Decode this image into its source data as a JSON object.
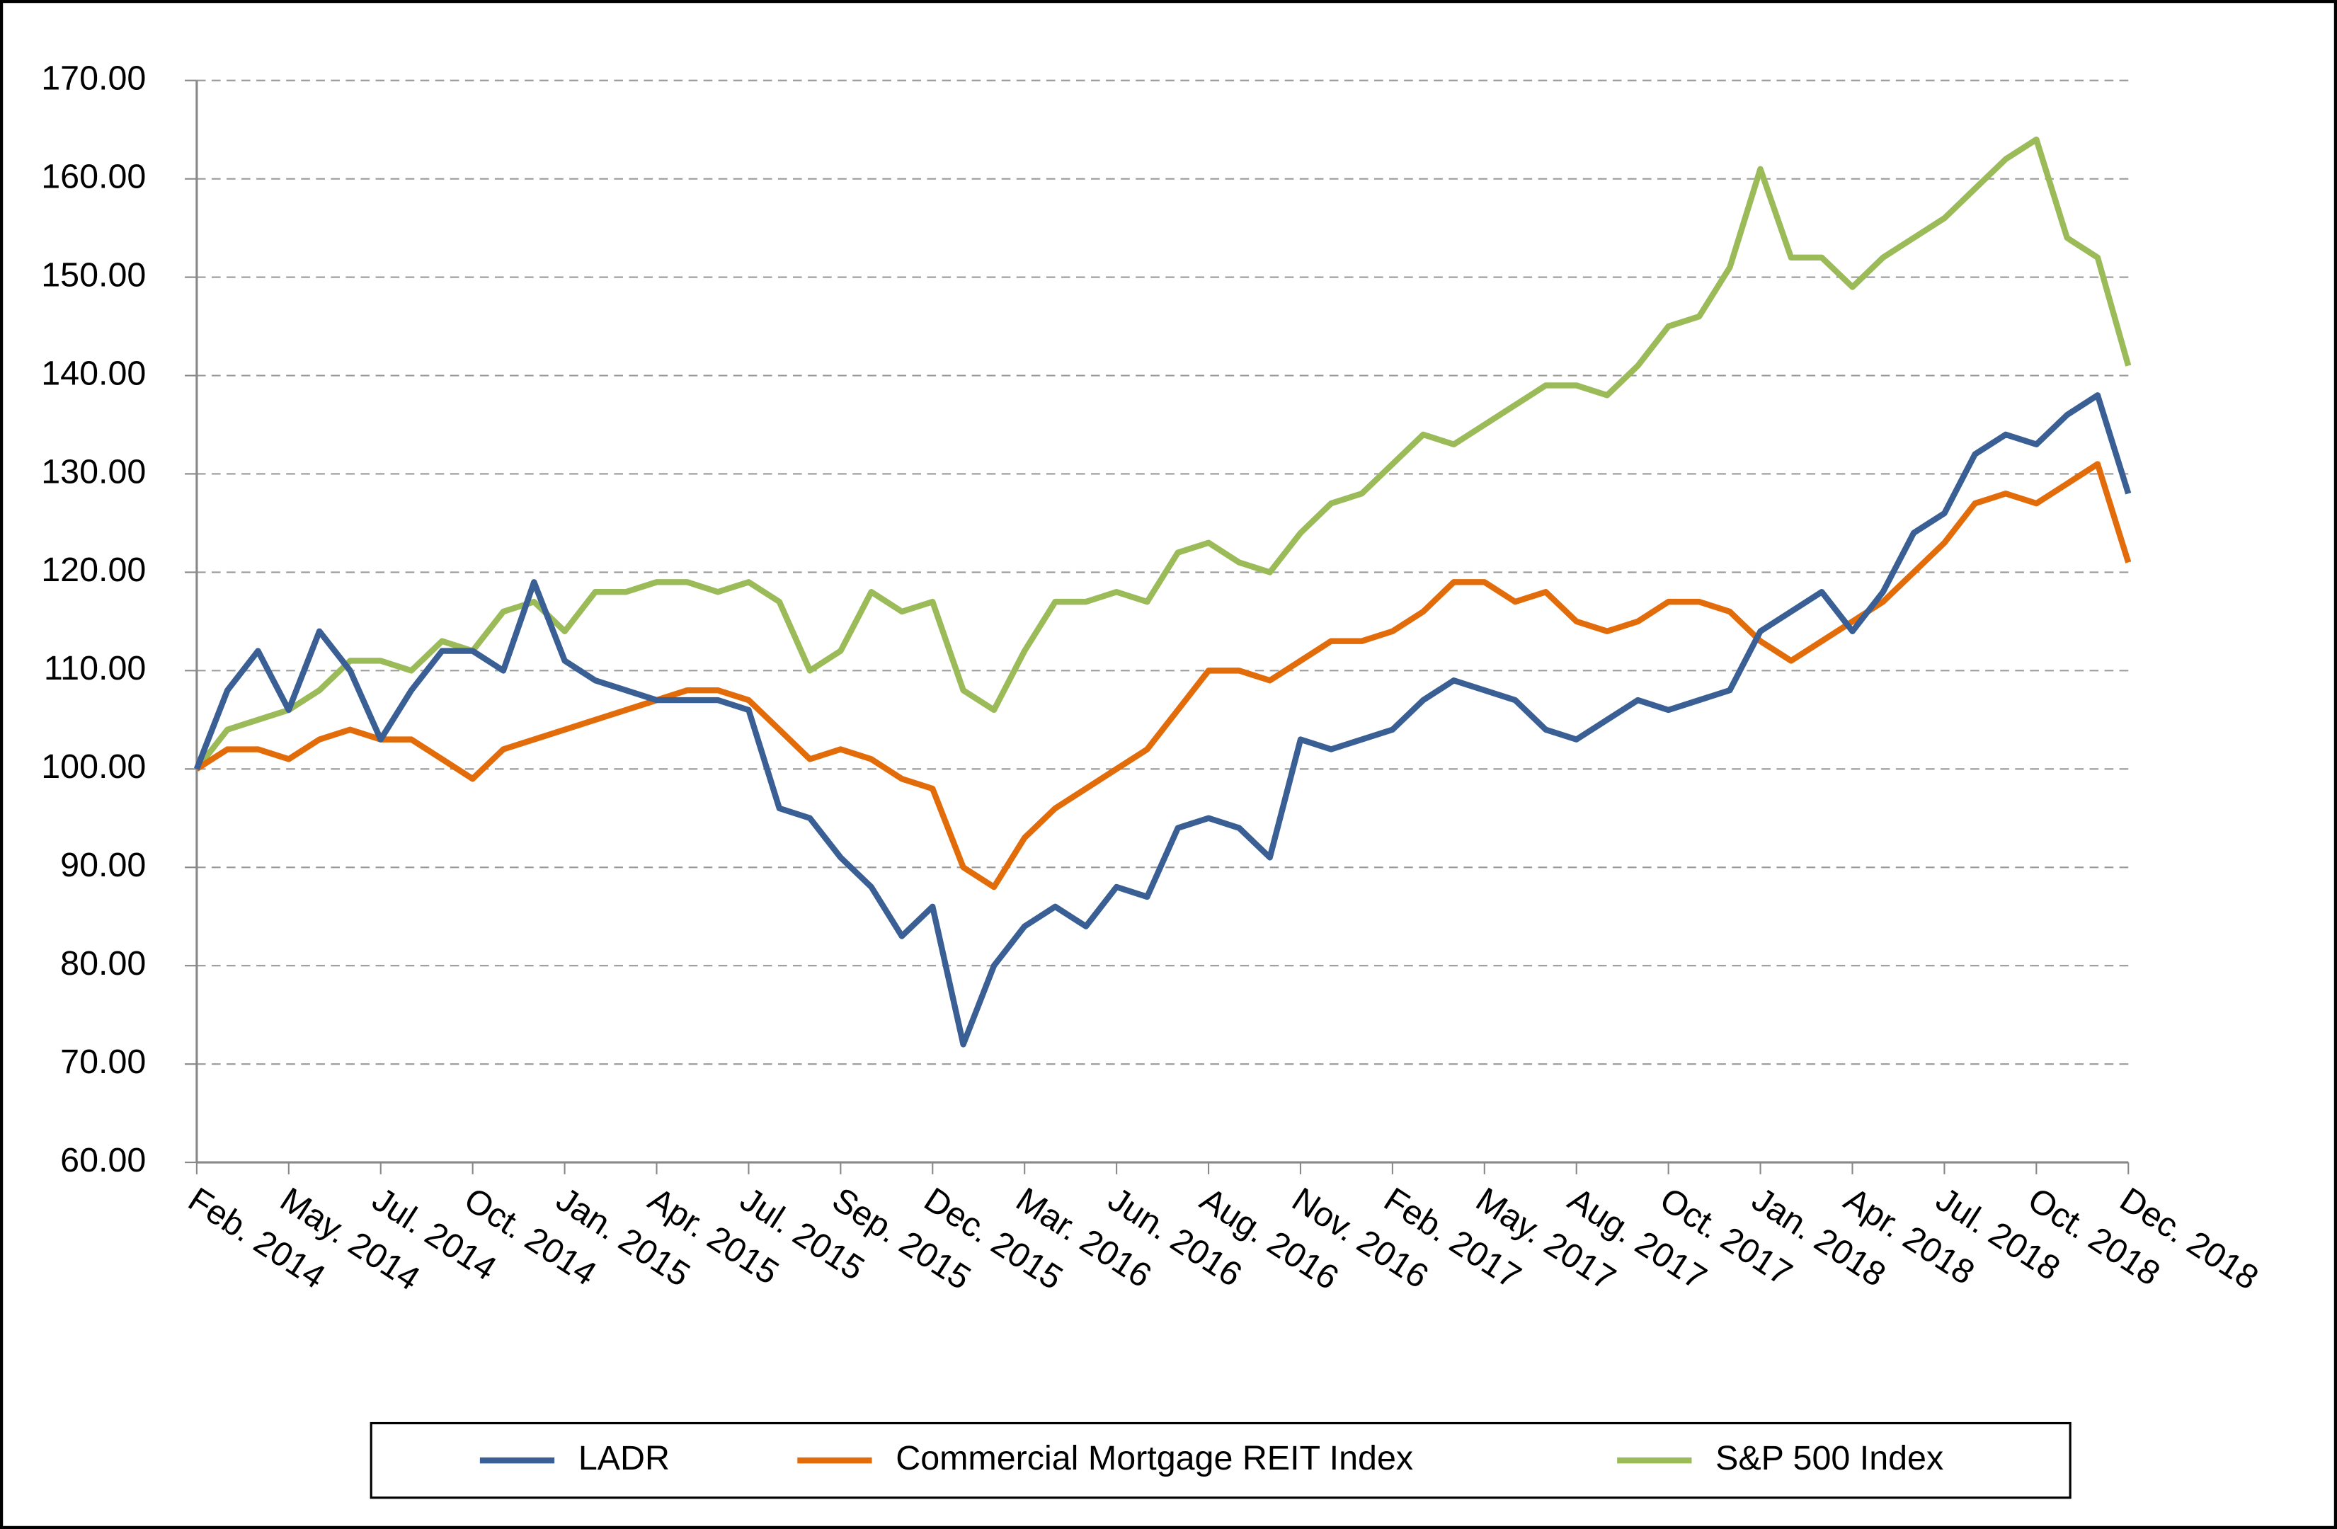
{
  "chart_data": {
    "type": "line",
    "categories": [
      "Feb. 2014",
      null,
      null,
      "May. 2014",
      null,
      null,
      "Jul. 2014",
      null,
      null,
      "Oct. 2014",
      null,
      null,
      "Jan. 2015",
      null,
      null,
      "Apr. 2015",
      null,
      null,
      "Jul. 2015",
      null,
      null,
      "Sep. 2015",
      null,
      null,
      "Dec. 2015",
      null,
      null,
      "Mar. 2016",
      null,
      null,
      "Jun. 2016",
      null,
      null,
      "Aug. 2016",
      null,
      null,
      "Nov. 2016",
      null,
      null,
      "Feb. 2017",
      null,
      null,
      "May. 2017",
      null,
      null,
      "Aug. 2017",
      null,
      null,
      "Oct. 2017",
      null,
      null,
      "Jan. 2018",
      null,
      null,
      "Apr. 2018",
      null,
      null,
      "Jul. 2018",
      null,
      null,
      "Oct. 2018",
      null,
      null,
      "Dec. 2018"
    ],
    "series": [
      {
        "name": "LADR",
        "color": "#3a5f94",
        "values": [
          100,
          108,
          112,
          106,
          114,
          110,
          103,
          108,
          112,
          112,
          110,
          119,
          111,
          109,
          108,
          107,
          107,
          107,
          106,
          96,
          95,
          91,
          88,
          83,
          86,
          72,
          80,
          84,
          86,
          84,
          88,
          87,
          94,
          95,
          94,
          91,
          103,
          102,
          103,
          104,
          107,
          109,
          108,
          107,
          104,
          103,
          105,
          107,
          106,
          107,
          108,
          114,
          116,
          118,
          114,
          118,
          124,
          126,
          132,
          134,
          133,
          136,
          138,
          128
        ]
      },
      {
        "name": "Commercial Mortgage REIT Index",
        "color": "#e36c0a",
        "values": [
          100,
          102,
          102,
          101,
          103,
          104,
          103,
          103,
          101,
          99,
          102,
          103,
          104,
          105,
          106,
          107,
          108,
          108,
          107,
          104,
          101,
          102,
          101,
          99,
          98,
          90,
          88,
          93,
          96,
          98,
          100,
          102,
          106,
          110,
          110,
          109,
          111,
          113,
          113,
          114,
          116,
          119,
          119,
          117,
          118,
          115,
          114,
          115,
          117,
          117,
          116,
          113,
          111,
          113,
          115,
          117,
          120,
          123,
          127,
          128,
          127,
          129,
          131,
          121
        ]
      },
      {
        "name": "S&P 500 Index",
        "color": "#9bbb59",
        "values": [
          100,
          104,
          105,
          106,
          108,
          111,
          111,
          110,
          113,
          112,
          116,
          117,
          114,
          118,
          118,
          119,
          119,
          118,
          119,
          117,
          110,
          112,
          118,
          116,
          117,
          108,
          106,
          112,
          117,
          117,
          118,
          117,
          122,
          123,
          121,
          120,
          124,
          127,
          128,
          131,
          134,
          133,
          135,
          137,
          139,
          139,
          138,
          141,
          145,
          146,
          151,
          161,
          152,
          152,
          149,
          152,
          154,
          156,
          159,
          162,
          164,
          154,
          152,
          141
        ]
      }
    ],
    "ylim": [
      60,
      170
    ],
    "yticks": [
      {
        "value": 60,
        "label": "60.00"
      },
      {
        "value": 70,
        "label": "70.00"
      },
      {
        "value": 80,
        "label": "80.00"
      },
      {
        "value": 90,
        "label": "90.00"
      },
      {
        "value": 100,
        "label": "100.00"
      },
      {
        "value": 110,
        "label": "110.00"
      },
      {
        "value": 120,
        "label": "120.00"
      },
      {
        "value": 130,
        "label": "130.00"
      },
      {
        "value": 140,
        "label": "140.00"
      },
      {
        "value": 150,
        "label": "150.00"
      },
      {
        "value": 160,
        "label": "160.00"
      },
      {
        "value": 170,
        "label": "170.00"
      }
    ],
    "grid": true,
    "legend": "bottom"
  }
}
